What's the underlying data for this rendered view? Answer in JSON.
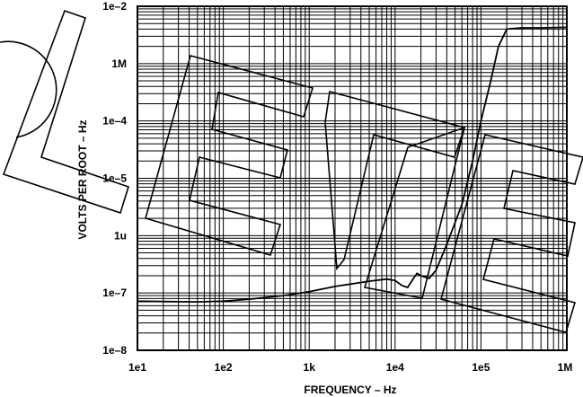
{
  "chart_data": {
    "type": "line",
    "title": "",
    "xlabel": "FREQUENCY – Hz",
    "ylabel": "VOLTS PER ROOT – Hz",
    "x_scale": "log",
    "y_scale": "log",
    "xlim": [
      10,
      1000000
    ],
    "ylim": [
      1e-08,
      0.01
    ],
    "grid": true,
    "x_ticks": [
      {
        "value": 10,
        "label": "1e1"
      },
      {
        "value": 100,
        "label": "1e2"
      },
      {
        "value": 1000,
        "label": "1k"
      },
      {
        "value": 10000,
        "label": "1e4"
      },
      {
        "value": 100000,
        "label": "1e5"
      },
      {
        "value": 1000000,
        "label": "1M"
      }
    ],
    "y_ticks": [
      {
        "value": 1e-08,
        "label": "1e–8"
      },
      {
        "value": 1e-07,
        "label": "1e–7"
      },
      {
        "value": 1e-06,
        "label": "1u"
      },
      {
        "value": 1e-05,
        "label": "1e–5"
      },
      {
        "value": 0.0001,
        "label": "1e–4"
      },
      {
        "value": 0.001,
        "label": "1M"
      },
      {
        "value": 0.01,
        "label": "1e–2"
      }
    ],
    "series": [
      {
        "x": [
          10,
          20,
          50,
          100,
          200,
          500,
          1000,
          2000,
          5000,
          8000,
          10000,
          12000,
          14000,
          16000,
          18000,
          20000,
          25000,
          30000,
          40000,
          60000,
          80000,
          100000,
          130000,
          160000,
          200000,
          300000,
          500000,
          1000000
        ],
        "y": [
          7.2e-08,
          7.1e-08,
          7e-08,
          7.2e-08,
          7.8e-08,
          9e-08,
          1.05e-07,
          1.3e-07,
          1.6e-07,
          1.75e-07,
          1.65e-07,
          1.35e-07,
          1.25e-07,
          1.7e-07,
          2.2e-07,
          2e-07,
          1.8e-07,
          2.5e-07,
          7e-07,
          3.5e-06,
          2e-05,
          0.0001,
          0.0005,
          0.002,
          0.004,
          0.0042,
          0.0042,
          0.0043
        ]
      }
    ]
  }
}
